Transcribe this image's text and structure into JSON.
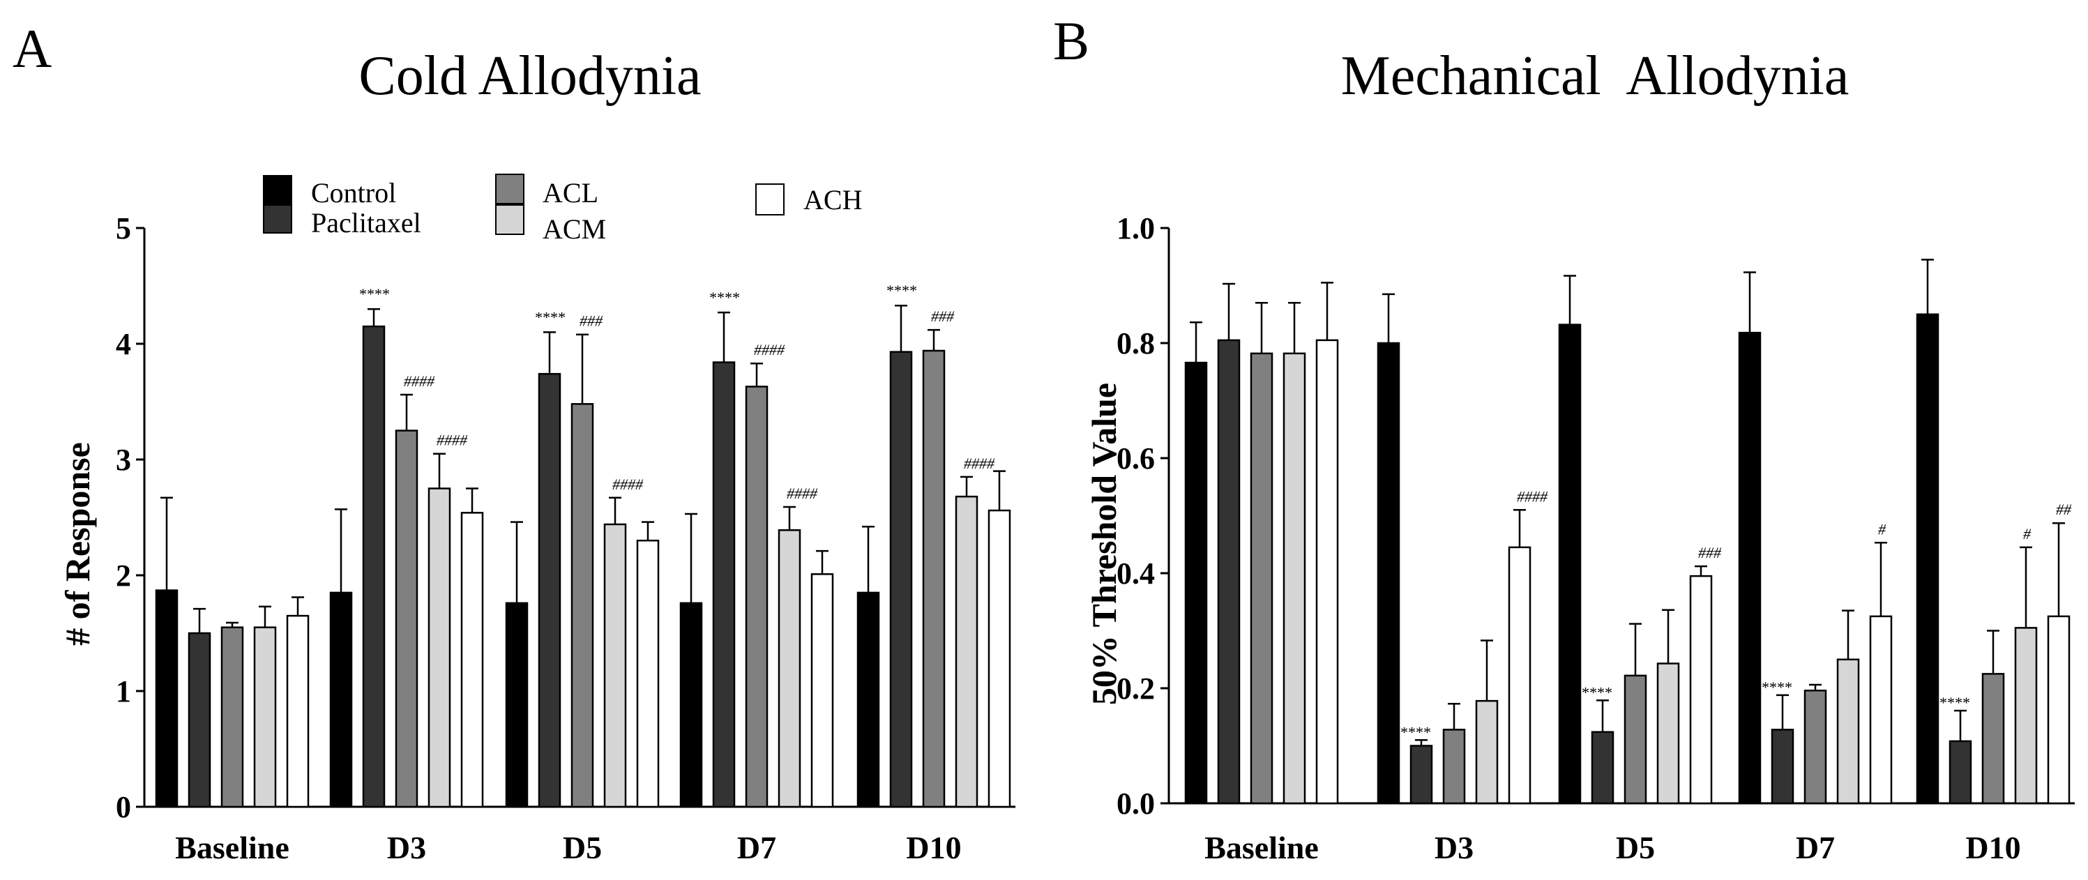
{
  "series_colors": {
    "Control": "#000000",
    "Paclitaxel": "#333333",
    "ACL": "#808080",
    "ACM": "#d6d6d6",
    "ACH": "#ffffff"
  },
  "legend": [
    "Control",
    "Paclitaxel",
    "ACL",
    "ACM",
    "ACH"
  ],
  "chart_data": [
    {
      "type": "bar",
      "panel": "A",
      "title": "Cold Allodynia",
      "ylabel": "# of Response",
      "xlabel": "",
      "ylim": [
        0,
        5
      ],
      "yticks": [
        "0",
        "1",
        "2",
        "3",
        "4",
        "5"
      ],
      "categories": [
        "Baseline",
        "D3",
        "D5",
        "D7",
        "D10"
      ],
      "series": [
        {
          "name": "Control",
          "values": [
            1.87,
            1.85,
            1.76,
            1.76,
            1.85
          ],
          "errors": [
            0.8,
            0.72,
            0.7,
            0.77,
            0.57
          ],
          "annotations": [
            "",
            "",
            "",
            "",
            ""
          ]
        },
        {
          "name": "Paclitaxel",
          "values": [
            1.5,
            4.15,
            3.74,
            3.84,
            3.93
          ],
          "errors": [
            0.21,
            0.15,
            0.36,
            0.43,
            0.4
          ],
          "annotations": [
            "",
            "****",
            "****",
            "****",
            "****"
          ]
        },
        {
          "name": "ACL",
          "values": [
            1.55,
            3.25,
            3.48,
            3.63,
            3.94
          ],
          "errors": [
            0.04,
            0.31,
            0.6,
            0.2,
            0.18
          ],
          "annotations": [
            "",
            "####",
            "###",
            "####",
            "###"
          ]
        },
        {
          "name": "ACM",
          "values": [
            1.55,
            2.75,
            2.44,
            2.39,
            2.68
          ],
          "errors": [
            0.18,
            0.3,
            0.23,
            0.2,
            0.17
          ],
          "annotations": [
            "",
            "####",
            "####",
            "####",
            "####"
          ]
        },
        {
          "name": "ACH",
          "values": [
            1.65,
            2.54,
            2.3,
            2.01,
            2.56
          ],
          "errors": [
            0.16,
            0.21,
            0.16,
            0.2,
            0.34
          ],
          "annotations": [
            "",
            "",
            "",
            "",
            ""
          ]
        }
      ]
    },
    {
      "type": "bar",
      "panel": "B",
      "title": "Mechanical  Allodynia",
      "ylabel": "50% Threshold Value",
      "xlabel": "",
      "ylim": [
        0,
        1.0
      ],
      "yticks": [
        "0.0",
        "0.2",
        "0.4",
        "0.6",
        "0.8",
        "1.0"
      ],
      "categories": [
        "Baseline",
        "D3",
        "D5",
        "D7",
        "D10"
      ],
      "series": [
        {
          "name": "Control",
          "values": [
            0.766,
            0.8,
            0.832,
            0.818,
            0.85
          ],
          "errors": [
            0.07,
            0.085,
            0.085,
            0.105,
            0.095
          ],
          "annotations": [
            "",
            "",
            "",
            "",
            ""
          ]
        },
        {
          "name": "Paclitaxel",
          "values": [
            0.805,
            0.1,
            0.124,
            0.128,
            0.108
          ],
          "errors": [
            0.098,
            0.01,
            0.055,
            0.06,
            0.053
          ],
          "annotations": [
            "",
            "****",
            "****",
            "****",
            "****"
          ]
        },
        {
          "name": "ACL",
          "values": [
            0.782,
            0.128,
            0.222,
            0.196,
            0.225
          ],
          "errors": [
            0.088,
            0.045,
            0.09,
            0.01,
            0.075
          ],
          "annotations": [
            "",
            "",
            "",
            "",
            ""
          ]
        },
        {
          "name": "ACM",
          "values": [
            0.782,
            0.178,
            0.243,
            0.25,
            0.305
          ],
          "errors": [
            0.088,
            0.105,
            0.093,
            0.085,
            0.14
          ],
          "annotations": [
            "",
            "",
            "",
            "",
            "#"
          ]
        },
        {
          "name": "ACH",
          "values": [
            0.805,
            0.445,
            0.395,
            0.325,
            0.325
          ],
          "errors": [
            0.1,
            0.065,
            0.017,
            0.128,
            0.162
          ],
          "annotations": [
            "",
            "####",
            "###",
            "#",
            "##"
          ]
        }
      ]
    }
  ]
}
